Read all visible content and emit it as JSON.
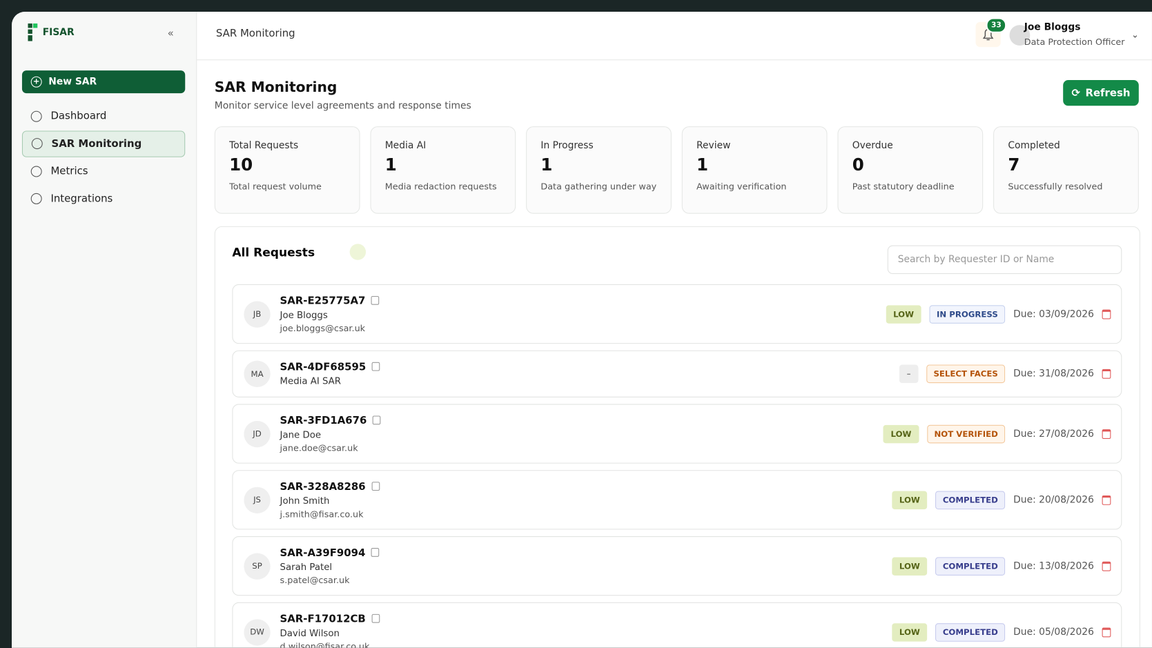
{
  "brand": "FISAR",
  "sidebar": {
    "new_sar": "New SAR",
    "nav": [
      "Dashboard",
      "SAR Monitoring",
      "Metrics",
      "Integrations"
    ]
  },
  "topbar": {
    "breadcrumb": "SAR Monitoring",
    "notifications": "33",
    "user_name": "Joe Bloggs",
    "user_role": "Data Protection Officer"
  },
  "header": {
    "title": "SAR Monitoring",
    "subtitle": "Monitor service level agreements and response times",
    "refresh": "Refresh"
  },
  "stats": [
    {
      "label": "Total Requests",
      "value": "10",
      "caption": "Total request volume"
    },
    {
      "label": "Media AI",
      "value": "1",
      "caption": "Media redaction requests"
    },
    {
      "label": "In Progress",
      "value": "1",
      "caption": "Data gathering under way"
    },
    {
      "label": "Review",
      "value": "1",
      "caption": "Awaiting verification"
    },
    {
      "label": "Overdue",
      "value": "0",
      "caption": "Past statutory deadline"
    },
    {
      "label": "Completed",
      "value": "7",
      "caption": "Successfully resolved"
    }
  ],
  "requests": {
    "title": "All Requests",
    "search_placeholder": "Search by Requester ID or Name",
    "rows": [
      {
        "initials": "JB",
        "id": "SAR-E25775A7",
        "name": "Joe Bloggs",
        "email": "joe.bloggs@csar.uk",
        "priority": "LOW",
        "status": "IN PROGRESS",
        "due": "Due: 03/09/2026"
      },
      {
        "initials": "MA",
        "id": "SAR-4DF68595",
        "name": "Media AI SAR",
        "priority": "–",
        "status": "SELECT FACES",
        "due": "Due: 31/08/2026"
      },
      {
        "initials": "JD",
        "id": "SAR-3FD1A676",
        "name": "Jane Doe",
        "email": "jane.doe@csar.uk",
        "priority": "LOW",
        "status": "NOT VERIFIED",
        "due": "Due: 27/08/2026"
      },
      {
        "initials": "JS",
        "id": "SAR-328A8286",
        "name": "John Smith",
        "email": "j.smith@fisar.co.uk",
        "priority": "LOW",
        "status": "COMPLETED",
        "due": "Due: 20/08/2026"
      },
      {
        "initials": "SP",
        "id": "SAR-A39F9094",
        "name": "Sarah Patel",
        "email": "s.patel@csar.uk",
        "priority": "LOW",
        "status": "COMPLETED",
        "due": "Due: 13/08/2026"
      },
      {
        "initials": "DW",
        "id": "SAR-F17012CB",
        "name": "David Wilson",
        "email": "d.wilson@fisar.co.uk",
        "priority": "LOW",
        "status": "COMPLETED",
        "due": "Due: 05/08/2026"
      }
    ]
  }
}
